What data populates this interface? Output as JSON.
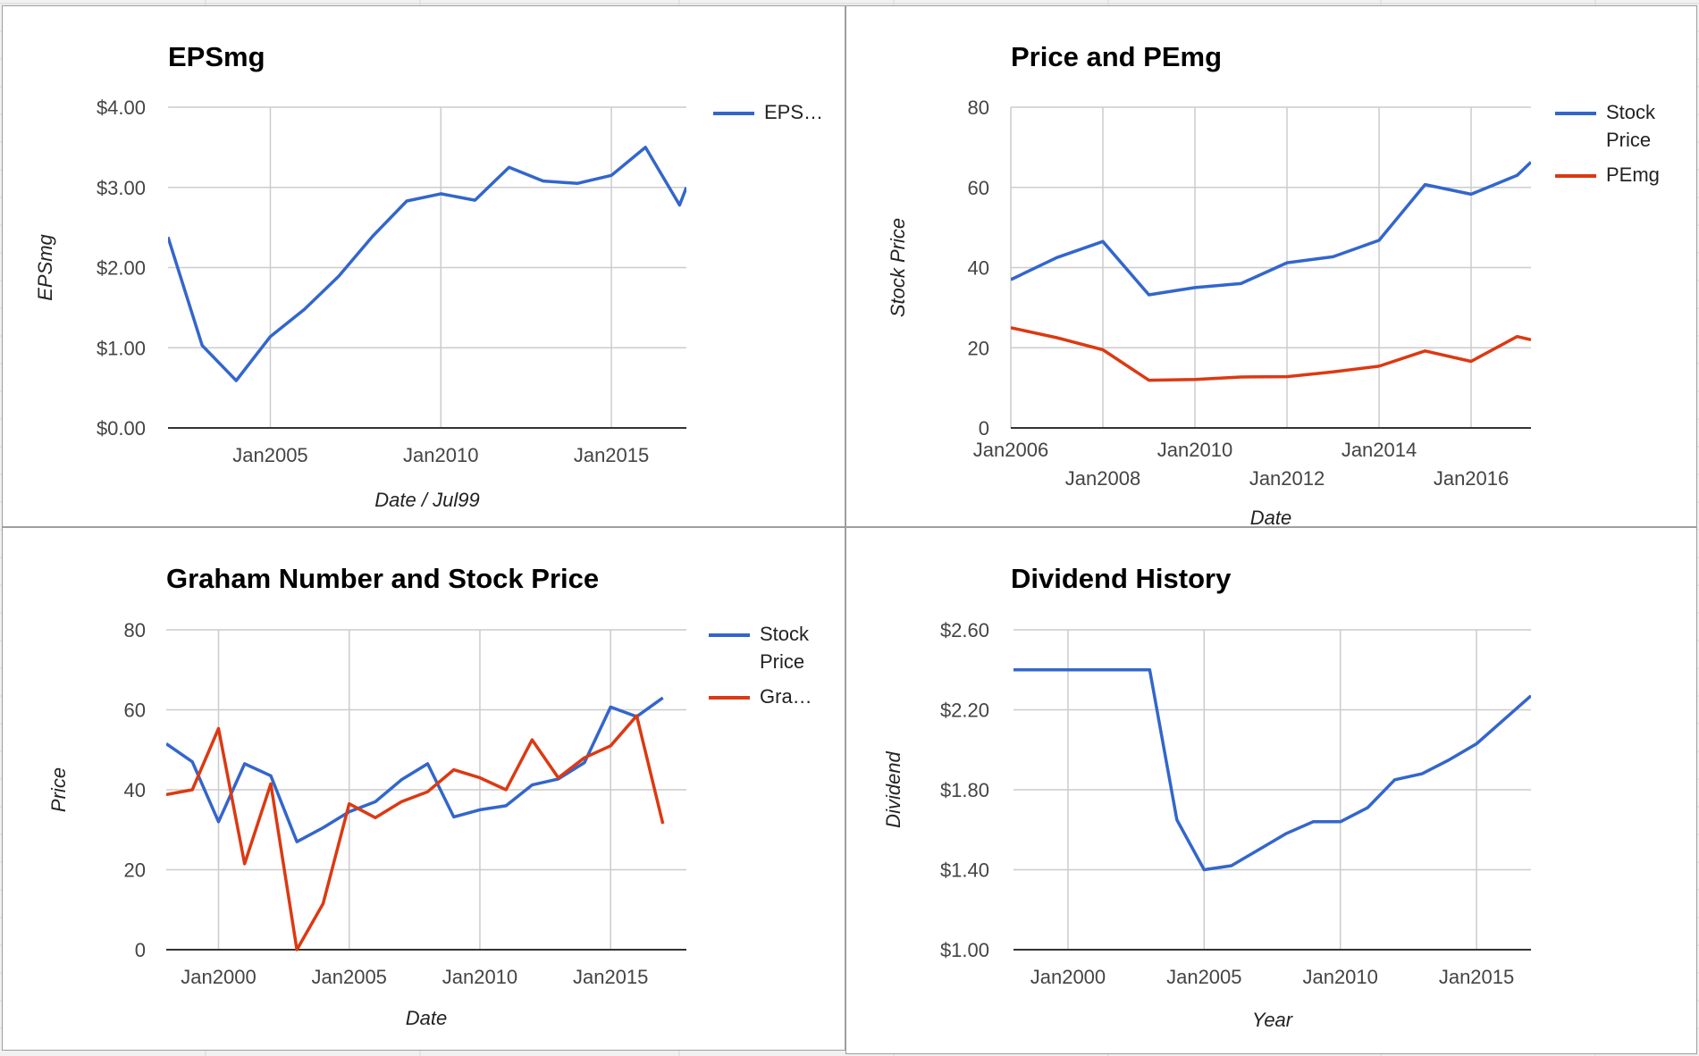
{
  "colors": {
    "blue": "#3366cc",
    "red": "#dc3912",
    "grid": "#cccccc",
    "axis": "#333333"
  },
  "chart_data": [
    {
      "id": "epsmg",
      "type": "line",
      "title": "EPSmg",
      "xlabel": "Date / Jul99",
      "ylabel": "EPSmg",
      "xaxis": "date",
      "xlim": [
        2002.0,
        2017.2
      ],
      "ylim": [
        0,
        4
      ],
      "yticks": [
        0,
        1,
        2,
        3,
        4
      ],
      "ytick_labels": [
        "$0.00",
        "$1.00",
        "$2.00",
        "$3.00",
        "$4.00"
      ],
      "xticks": [
        2005,
        2010,
        2015
      ],
      "xtick_labels": [
        "Jan2005",
        "Jan2010",
        "Jan2015"
      ],
      "legend": "right",
      "series": [
        {
          "name": "EPS…",
          "color": "#3366cc",
          "x": [
            2002.0,
            2003.0,
            2004.0,
            2005.0,
            2006.0,
            2007.0,
            2008.0,
            2009.0,
            2010.0,
            2011.0,
            2012.0,
            2013.0,
            2014.0,
            2015.0,
            2016.0,
            2017.0,
            2017.2
          ],
          "y": [
            2.38,
            1.03,
            0.59,
            1.14,
            1.48,
            1.89,
            2.39,
            2.83,
            2.92,
            2.84,
            3.25,
            3.08,
            3.05,
            3.15,
            3.5,
            2.78,
            3.0
          ]
        }
      ]
    },
    {
      "id": "price-pemg",
      "type": "line",
      "title": "Price and PEmg",
      "xlabel": "Date",
      "ylabel": "Stock Price",
      "xaxis": "date",
      "xlim": [
        2006.0,
        2017.3
      ],
      "ylim": [
        0,
        80
      ],
      "yticks": [
        0,
        20,
        40,
        60,
        80
      ],
      "ytick_labels": [
        "0",
        "20",
        "40",
        "60",
        "80"
      ],
      "xticks": [
        2006,
        2008,
        2010,
        2012,
        2014,
        2016
      ],
      "xtick_labels": [
        "Jan2006",
        "Jan2008",
        "Jan2010",
        "Jan2012",
        "Jan2014",
        "Jan2016"
      ],
      "xtick_stagger": true,
      "legend": "right",
      "series": [
        {
          "name": "Stock Price",
          "legend_lines": [
            "Stock",
            "Price"
          ],
          "color": "#3366cc",
          "x": [
            2006.0,
            2007.0,
            2008.0,
            2009.0,
            2010.0,
            2011.0,
            2012.0,
            2013.0,
            2014.0,
            2015.0,
            2016.0,
            2017.0,
            2017.3
          ],
          "y": [
            37.0,
            42.5,
            46.5,
            33.2,
            35.0,
            36.0,
            41.2,
            42.7,
            46.8,
            60.7,
            58.3,
            63.0,
            66.3
          ]
        },
        {
          "name": "PEmg",
          "color": "#dc3912",
          "x": [
            2006.0,
            2007.0,
            2008.0,
            2009.0,
            2010.0,
            2011.0,
            2012.0,
            2013.0,
            2014.0,
            2015.0,
            2016.0,
            2017.0,
            2017.3
          ],
          "y": [
            25.0,
            22.5,
            19.5,
            11.9,
            12.1,
            12.7,
            12.8,
            14.0,
            15.4,
            19.2,
            16.6,
            22.8,
            22.0
          ]
        }
      ]
    },
    {
      "id": "graham",
      "type": "line",
      "title": "Graham Number and Stock Price",
      "xlabel": "Date",
      "ylabel": "Price",
      "xaxis": "date",
      "xlim": [
        1998.0,
        2017.9
      ],
      "ylim": [
        0,
        80
      ],
      "yticks": [
        0,
        20,
        40,
        60,
        80
      ],
      "ytick_labels": [
        "0",
        "20",
        "40",
        "60",
        "80"
      ],
      "xticks": [
        2000,
        2005,
        2010,
        2015
      ],
      "xtick_labels": [
        "Jan2000",
        "Jan2005",
        "Jan2010",
        "Jan2015"
      ],
      "legend": "right",
      "series": [
        {
          "name": "Stock Price",
          "legend_lines": [
            "Stock",
            "Price"
          ],
          "color": "#3366cc",
          "x": [
            1998,
            1999,
            2000,
            2001,
            2002,
            2003,
            2004,
            2005,
            2006,
            2007,
            2008,
            2009,
            2010,
            2011,
            2012,
            2013,
            2014,
            2015,
            2016,
            2017
          ],
          "y": [
            51.5,
            47.0,
            32.0,
            46.5,
            43.5,
            27.0,
            30.5,
            34.5,
            37.0,
            42.5,
            46.5,
            33.2,
            35.0,
            36.0,
            41.2,
            42.7,
            46.8,
            60.7,
            58.3,
            63.0
          ]
        },
        {
          "name": "Gra…",
          "color": "#dc3912",
          "x": [
            1998,
            1999,
            2000,
            2001,
            2002,
            2003,
            2004,
            2005,
            2006,
            2007,
            2008,
            2009,
            2010,
            2011,
            2012,
            2013,
            2014,
            2015,
            2016,
            2017
          ],
          "y": [
            38.8,
            40.0,
            55.3,
            21.5,
            41.5,
            0.0,
            11.5,
            36.5,
            33.0,
            37.0,
            39.5,
            45.0,
            43.0,
            40.0,
            52.5,
            43.0,
            48.0,
            51.0,
            58.5,
            31.5
          ]
        }
      ]
    },
    {
      "id": "dividend",
      "type": "line",
      "title": "Dividend History",
      "xlabel": "Year",
      "ylabel": "Dividend",
      "xaxis": "date",
      "xlim": [
        1998.0,
        2017.0
      ],
      "ylim": [
        1.0,
        2.6
      ],
      "yticks": [
        1.0,
        1.4,
        1.8,
        2.2,
        2.6
      ],
      "ytick_labels": [
        "$1.00",
        "$1.40",
        "$1.80",
        "$2.20",
        "$2.60"
      ],
      "xticks": [
        2000,
        2005,
        2010,
        2015
      ],
      "xtick_labels": [
        "Jan2000",
        "Jan2005",
        "Jan2010",
        "Jan2015"
      ],
      "legend": "none",
      "series": [
        {
          "name": "",
          "color": "#3366cc",
          "x": [
            1998,
            1999,
            2000,
            2001,
            2002,
            2003,
            2004,
            2005,
            2006,
            2007,
            2008,
            2009,
            2010,
            2011,
            2012,
            2013,
            2014,
            2015,
            2016,
            2017
          ],
          "y": [
            2.4,
            2.4,
            2.4,
            2.4,
            2.4,
            2.4,
            1.65,
            1.4,
            1.42,
            1.5,
            1.58,
            1.64,
            1.64,
            1.71,
            1.85,
            1.88,
            1.95,
            2.03,
            2.15,
            2.27
          ]
        }
      ]
    }
  ]
}
